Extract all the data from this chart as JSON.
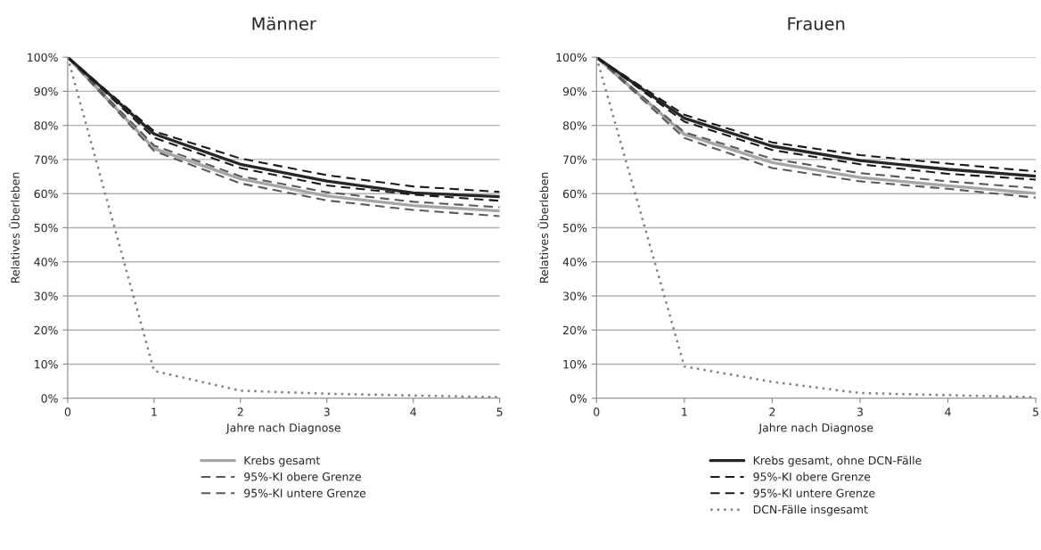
{
  "chart_data": [
    {
      "type": "line",
      "title": "Männer",
      "xlabel": "Jahre nach Diagnose",
      "ylabel": "Relatives Überleben",
      "x": [
        0,
        1,
        2,
        3,
        4,
        5
      ],
      "xlim": [
        0,
        5
      ],
      "xticks": [
        0,
        1,
        2,
        3,
        4,
        5
      ],
      "ylim": [
        0,
        100
      ],
      "yticks": [
        {
          "value": 0,
          "label": "0%"
        },
        {
          "value": 10,
          "label": "10%"
        },
        {
          "value": 20,
          "label": "20%"
        },
        {
          "value": 30,
          "label": "30%"
        },
        {
          "value": 40,
          "label": "40%"
        },
        {
          "value": 50,
          "label": "50%"
        },
        {
          "value": 60,
          "label": "60%"
        },
        {
          "value": 70,
          "label": "70%"
        },
        {
          "value": 80,
          "label": "80%"
        },
        {
          "value": 90,
          "label": "90%"
        },
        {
          "value": 100,
          "label": "100%"
        }
      ],
      "grid": "y",
      "legend": "bottom",
      "series": [
        {
          "name": "Krebs gesamt",
          "color": "#a6a6a6",
          "line_style": "solid",
          "values": [
            100,
            73.2,
            64.3,
            59.3,
            56.5,
            54.9
          ]
        },
        {
          "name": "95%-KI obere Grenze",
          "color": "#595959",
          "line_style": "dashed",
          "values": [
            100,
            74.1,
            65.1,
            60.4,
            57.6,
            56.0
          ]
        },
        {
          "name": "95%-KI untere Grenze",
          "color": "#595959",
          "line_style": "dashed",
          "values": [
            100,
            72.5,
            63.0,
            58.0,
            55.2,
            53.4
          ]
        },
        {
          "color": "#262626",
          "line_style": "solid",
          "values": [
            100,
            77.5,
            68.6,
            63.7,
            60.2,
            59.1
          ]
        },
        {
          "color": "#1a1a1a",
          "line_style": "dashed",
          "values": [
            100,
            78.3,
            70.3,
            65.4,
            62.1,
            60.5
          ]
        },
        {
          "color": "#1a1a1a",
          "line_style": "dashed",
          "values": [
            100,
            76.4,
            67.5,
            62.4,
            59.7,
            57.9
          ]
        },
        {
          "color": "#808080",
          "line_style": "dotted",
          "values": [
            100,
            8.0,
            2.2,
            1.3,
            0.8,
            0.3
          ]
        }
      ]
    },
    {
      "type": "line",
      "title": "Frauen",
      "xlabel": "Jahre nach Diagnose",
      "ylabel": "Relatives Überleben",
      "x": [
        0,
        1,
        2,
        3,
        4,
        5
      ],
      "xlim": [
        0,
        5
      ],
      "xticks": [
        0,
        1,
        2,
        3,
        4,
        5
      ],
      "ylim": [
        0,
        100
      ],
      "yticks": [
        {
          "value": 0,
          "label": "0%"
        },
        {
          "value": 10,
          "label": "10%"
        },
        {
          "value": 20,
          "label": "20%"
        },
        {
          "value": 30,
          "label": "30%"
        },
        {
          "value": 40,
          "label": "40%"
        },
        {
          "value": 50,
          "label": "50%"
        },
        {
          "value": 60,
          "label": "60%"
        },
        {
          "value": 70,
          "label": "70%"
        },
        {
          "value": 80,
          "label": "80%"
        },
        {
          "value": 90,
          "label": "90%"
        },
        {
          "value": 100,
          "label": "100%"
        }
      ],
      "grid": "y",
      "legend": "bottom",
      "series": [
        {
          "color": "#a6a6a6",
          "line_style": "solid",
          "values": [
            100,
            77.4,
            69.1,
            64.7,
            62.3,
            60.1
          ]
        },
        {
          "color": "#595959",
          "line_style": "dashed",
          "values": [
            100,
            78.0,
            70.2,
            66.0,
            63.6,
            61.6
          ]
        },
        {
          "color": "#595959",
          "line_style": "dashed",
          "values": [
            100,
            76.3,
            67.5,
            63.6,
            61.4,
            58.8
          ]
        },
        {
          "name": "Krebs gesamt, ohne DCN-Fälle",
          "color": "#262626",
          "line_style": "solid",
          "values": [
            100,
            82.1,
            73.9,
            69.7,
            67.1,
            65.1
          ]
        },
        {
          "name": "95%-KI obere Grenze",
          "color": "#1a1a1a",
          "line_style": "dashed",
          "values": [
            100,
            83.1,
            75.0,
            71.3,
            68.8,
            66.5
          ]
        },
        {
          "name": "95%-KI untere Grenze",
          "color": "#1a1a1a",
          "line_style": "dashed",
          "values": [
            100,
            81.1,
            72.8,
            68.6,
            65.8,
            64.1
          ]
        },
        {
          "name": "DCN-Fälle insgesamt",
          "color": "#808080",
          "line_style": "dotted",
          "values": [
            100,
            9.3,
            4.8,
            1.5,
            0.9,
            0.3
          ]
        }
      ]
    }
  ]
}
